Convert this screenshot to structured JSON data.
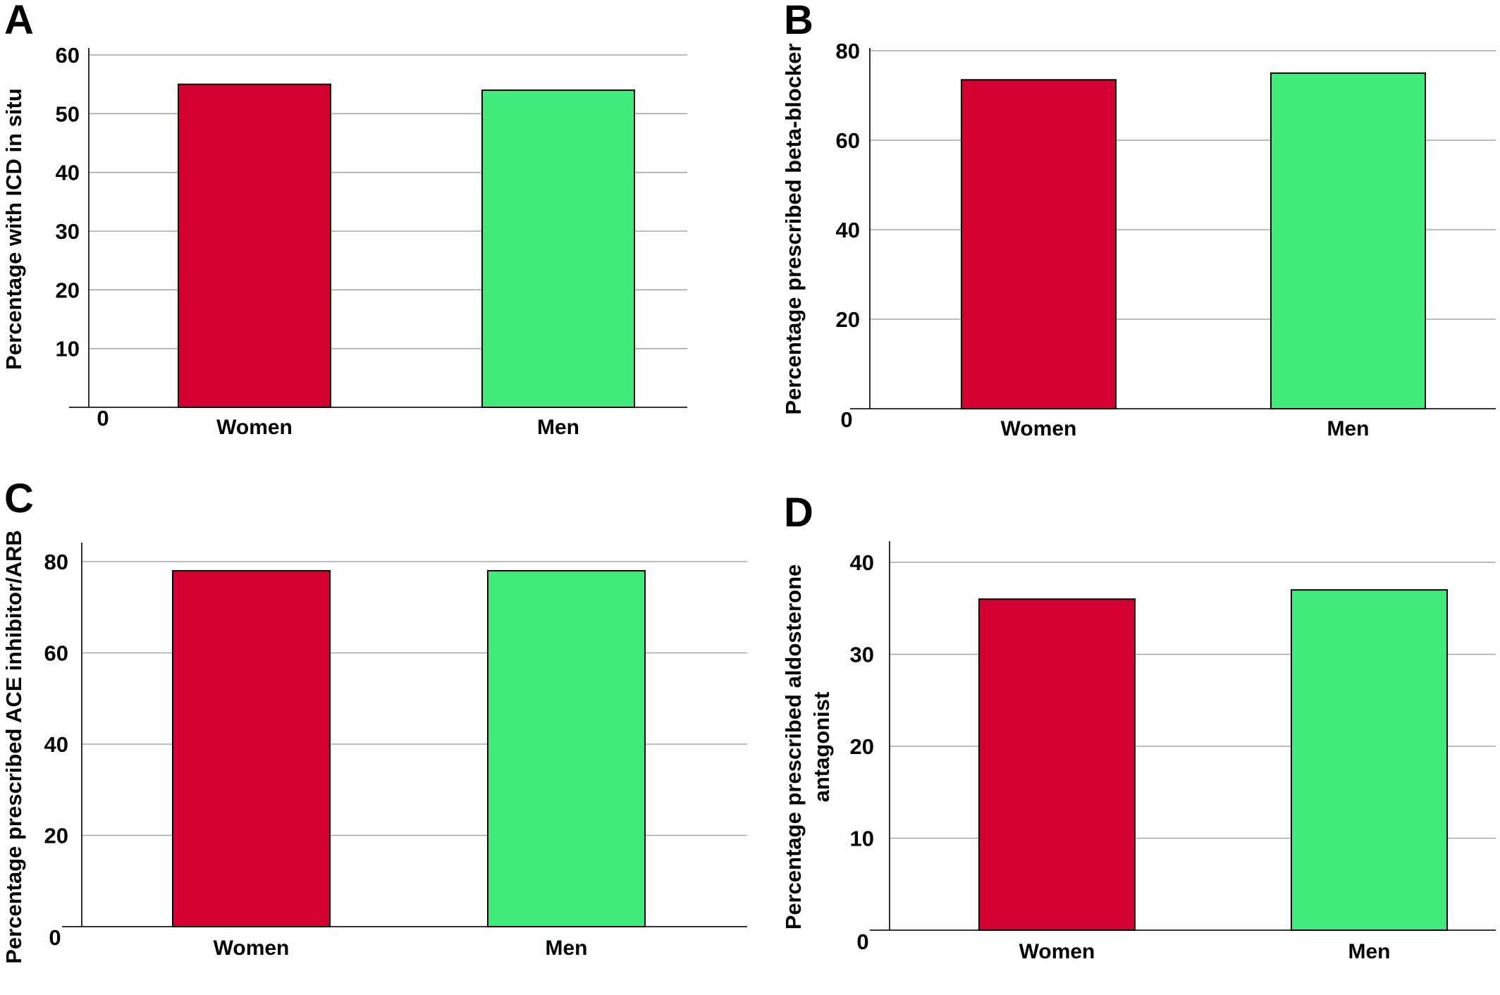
{
  "colors": {
    "women": "#d50032",
    "men": "#41eb7b"
  },
  "chart_data": [
    {
      "panel": "A",
      "type": "bar",
      "categories": [
        "Women",
        "Men"
      ],
      "values": [
        55,
        54
      ],
      "ylabel": [
        "Percentage with ICD in situ"
      ],
      "ylim": [
        0,
        60
      ],
      "yticks": [
        0,
        10,
        20,
        30,
        40,
        50,
        60
      ],
      "grid": true
    },
    {
      "panel": "B",
      "type": "bar",
      "categories": [
        "Women",
        "Men"
      ],
      "values": [
        73.5,
        75
      ],
      "ylabel": [
        "Percentage prescribed beta-blocker"
      ],
      "ylim": [
        0,
        80
      ],
      "yticks": [
        0,
        20,
        40,
        60,
        80
      ],
      "grid": true
    },
    {
      "panel": "C",
      "type": "bar",
      "categories": [
        "Women",
        "Men"
      ],
      "values": [
        78,
        78
      ],
      "ylabel": [
        "Percentage prescribed ACE inhibitor/ARB"
      ],
      "ylim": [
        0,
        80
      ],
      "yticks": [
        0,
        20,
        40,
        60,
        80
      ],
      "grid": true
    },
    {
      "panel": "D",
      "type": "bar",
      "categories": [
        "Women",
        "Men"
      ],
      "values": [
        36,
        37
      ],
      "ylabel": [
        "Percentage prescribed aldosterone",
        "antagonist"
      ],
      "ylim": [
        0,
        40
      ],
      "yticks": [
        0,
        10,
        20,
        30,
        40
      ],
      "grid": true
    }
  ]
}
